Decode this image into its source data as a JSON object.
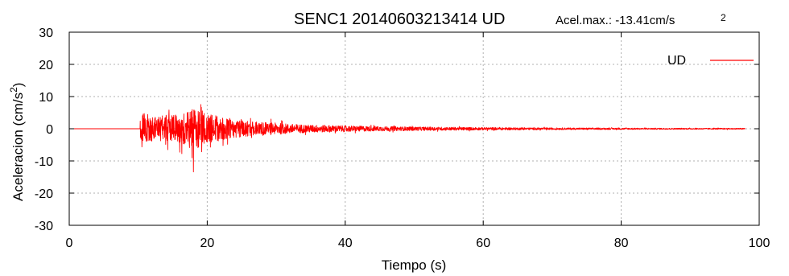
{
  "chart_data": {
    "type": "line",
    "title": "SENC1 20140603213414 UD",
    "annotation": {
      "prefix": "Acel.max.: ",
      "value": "-13.41",
      "unit": "cm/s",
      "exponent": "2"
    },
    "xlabel": "Tiempo (s)",
    "ylabel": {
      "text": "Aceleracion (cm/s",
      "exponent": "2",
      "suffix": ")"
    },
    "xlim": [
      0,
      100
    ],
    "ylim": [
      -30,
      30
    ],
    "xticks": [
      0,
      20,
      40,
      60,
      80,
      100
    ],
    "yticks": [
      30,
      20,
      10,
      0,
      -10,
      -20,
      -30
    ],
    "grid": true,
    "legend_position": "top-right",
    "series": [
      {
        "name": "UD",
        "color": "#ff0000",
        "signal": {
          "start": 0,
          "end": 98,
          "onset": 10.2,
          "peak": -13.41,
          "peak_time": 18.0,
          "envelope": [
            [
              0,
              0
            ],
            [
              10.2,
              0
            ],
            [
              10.4,
              11
            ],
            [
              11,
              8
            ],
            [
              12,
              7
            ],
            [
              13,
              6.5
            ],
            [
              14,
              7
            ],
            [
              15,
              7
            ],
            [
              16,
              7.5
            ],
            [
              17,
              9
            ],
            [
              18,
              11
            ],
            [
              19,
              11
            ],
            [
              20,
              8
            ],
            [
              22,
              6
            ],
            [
              24,
              4.5
            ],
            [
              26,
              4
            ],
            [
              28,
              3.5
            ],
            [
              30,
              3
            ],
            [
              32,
              2.5
            ],
            [
              35,
              2
            ],
            [
              40,
              1.6
            ],
            [
              45,
              1.2
            ],
            [
              50,
              1
            ],
            [
              60,
              0.7
            ],
            [
              70,
              0.5
            ],
            [
              80,
              0.4
            ],
            [
              90,
              0.3
            ],
            [
              98,
              0.3
            ]
          ]
        }
      }
    ]
  }
}
